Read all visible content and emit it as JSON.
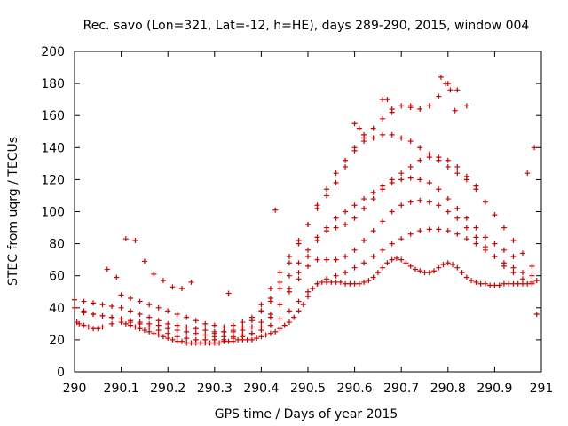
{
  "chart_data": {
    "type": "scatter",
    "title": "Rec. savo (Lon=321, Lat=-12, h=HE), days 289-290, 2015, window 004",
    "xlabel": "GPS time / Days of year 2015",
    "ylabel": "STEC from uqrg / TECUs",
    "xlim": [
      290,
      291
    ],
    "ylim": [
      0,
      200
    ],
    "x_ticks": [
      "290",
      "290.1",
      "290.2",
      "290.3",
      "290.4",
      "290.5",
      "290.6",
      "290.7",
      "290.8",
      "290.9",
      "291"
    ],
    "y_ticks": [
      "0",
      "20",
      "40",
      "60",
      "80",
      "100",
      "120",
      "140",
      "160",
      "180",
      "200"
    ],
    "grid": false,
    "legend": "none",
    "marker": "plus",
    "color": "#d40000",
    "series": [
      {
        "x": [
          290.005,
          290.01,
          290.02,
          290.03,
          290.04,
          290.05,
          290.06,
          290.08,
          290.1,
          290.11,
          290.12,
          290.13,
          290.14,
          290.15,
          290.16,
          290.17,
          290.18,
          290.19,
          290.2,
          290.21,
          290.22,
          290.23,
          290.24,
          290.25,
          290.26,
          290.27,
          290.28,
          290.29,
          290.3,
          290.31,
          290.32,
          290.33,
          290.34,
          290.35,
          290.36,
          290.37,
          290.38,
          290.39,
          290.4,
          290.41,
          290.42,
          290.43,
          290.44,
          290.45,
          290.46,
          290.47,
          290.48,
          290.49,
          290.5,
          290.51,
          290.52,
          290.53,
          290.54,
          290.55,
          290.56,
          290.57,
          290.58,
          290.59,
          290.6,
          290.61,
          290.62,
          290.63,
          290.64,
          290.65,
          290.66,
          290.67,
          290.68,
          290.69,
          290.7,
          290.71,
          290.72,
          290.73,
          290.74,
          290.75,
          290.76,
          290.77,
          290.78,
          290.79,
          290.8,
          290.81,
          290.82,
          290.83,
          290.84,
          290.85,
          290.86,
          290.87,
          290.88,
          290.89,
          290.9,
          290.91,
          290.92,
          290.93,
          290.94,
          290.95,
          290.96,
          290.97,
          290.98,
          290.99
        ],
        "y": [
          31,
          30,
          29,
          28,
          27,
          27,
          28,
          30,
          31,
          30,
          29,
          28,
          27,
          26,
          25,
          24,
          23,
          22,
          21,
          20,
          19,
          19,
          18,
          18,
          18,
          18,
          18,
          18,
          18,
          18,
          19,
          19,
          19,
          20,
          20,
          20,
          20,
          21,
          22,
          23,
          24,
          25,
          27,
          29,
          31,
          34,
          38,
          42,
          47,
          52,
          55,
          56,
          56,
          56,
          56,
          56,
          55,
          55,
          55,
          55,
          56,
          57,
          59,
          62,
          65,
          68,
          70,
          71,
          70,
          68,
          66,
          64,
          63,
          62,
          62,
          63,
          65,
          67,
          68,
          67,
          65,
          62,
          59,
          57,
          56,
          55,
          55,
          54,
          54,
          54,
          55,
          55,
          55,
          55,
          55,
          55,
          56,
          57
        ]
      },
      {
        "x": [
          290.0,
          290.02,
          290.04,
          290.06,
          290.08,
          290.1,
          290.12,
          290.14,
          290.16,
          290.18,
          290.2,
          290.22,
          290.24,
          290.26,
          290.28,
          290.3,
          290.32,
          290.34,
          290.36,
          290.38,
          290.4,
          290.42,
          290.44,
          290.46,
          290.48,
          290.5,
          290.52,
          290.54,
          290.56,
          290.58,
          290.6,
          290.62,
          290.64,
          290.66,
          290.68,
          290.7,
          290.72,
          290.74,
          290.76,
          290.78,
          290.8,
          290.82,
          290.84,
          290.86,
          290.88,
          290.9,
          290.92,
          290.94,
          290.96,
          290.98
        ],
        "y": [
          40,
          38,
          36,
          35,
          34,
          33,
          32,
          31,
          30,
          29,
          27,
          26,
          25,
          24,
          23,
          22,
          22,
          22,
          23,
          24,
          26,
          29,
          33,
          38,
          44,
          50,
          55,
          58,
          60,
          62,
          65,
          68,
          72,
          76,
          80,
          83,
          86,
          88,
          89,
          89,
          88,
          86,
          83,
          80,
          76,
          72,
          68,
          65,
          62,
          60
        ]
      },
      {
        "x": [
          290.0,
          290.02,
          290.04,
          290.06,
          290.08,
          290.1,
          290.12,
          290.14,
          290.16,
          290.18,
          290.2,
          290.22,
          290.24,
          290.26,
          290.28,
          290.3,
          290.32,
          290.34,
          290.36,
          290.38,
          290.4,
          290.42,
          290.44,
          290.46,
          290.48,
          290.5,
          290.52,
          290.54,
          290.56,
          290.58,
          290.6,
          290.62,
          290.64,
          290.66,
          290.68,
          290.7,
          290.72,
          290.74,
          290.76,
          290.78,
          290.8,
          290.82,
          290.84,
          290.86,
          290.88,
          290.9,
          290.92,
          290.94,
          290.96,
          290.98
        ],
        "y": [
          45,
          44,
          43,
          42,
          41,
          40,
          38,
          36,
          34,
          32,
          30,
          29,
          28,
          27,
          26,
          25,
          25,
          25,
          26,
          28,
          31,
          36,
          42,
          50,
          58,
          66,
          70,
          70,
          70,
          72,
          76,
          82,
          88,
          94,
          100,
          104,
          106,
          107,
          106,
          104,
          100,
          96,
          90,
          84,
          78,
          72,
          66,
          62,
          58,
          55
        ]
      },
      {
        "x": [
          290.1,
          290.12,
          290.14,
          290.16,
          290.18,
          290.2,
          290.22,
          290.24,
          290.26,
          290.28,
          290.3,
          290.32,
          290.34,
          290.36,
          290.38,
          290.4,
          290.42,
          290.44,
          290.46,
          290.48,
          290.5,
          290.52,
          290.54,
          290.56,
          290.58,
          290.6,
          290.62,
          290.64,
          290.66,
          290.68,
          290.7,
          290.72,
          290.74,
          290.76,
          290.78,
          290.8,
          290.82,
          290.84,
          290.86,
          290.88,
          290.9,
          290.92,
          290.94
        ],
        "y": [
          48,
          46,
          44,
          42,
          40,
          38,
          36,
          34,
          32,
          30,
          29,
          28,
          29,
          31,
          34,
          38,
          44,
          52,
          60,
          68,
          76,
          84,
          88,
          90,
          92,
          96,
          102,
          108,
          114,
          118,
          120,
          121,
          120,
          118,
          114,
          108,
          102,
          96,
          90,
          84,
          80,
          76,
          72
        ]
      },
      {
        "x": [
          290.02,
          290.04,
          290.06,
          290.08,
          290.1,
          290.12,
          290.14,
          290.16,
          290.18,
          290.2,
          290.22,
          290.24,
          290.26,
          290.28,
          290.3,
          290.32,
          290.34,
          290.36,
          290.38,
          290.4,
          290.42,
          290.44,
          290.46,
          290.48,
          290.5,
          290.52,
          290.54,
          290.56,
          290.58,
          290.6,
          290.62,
          290.64,
          290.66,
          290.68,
          290.7,
          290.72,
          290.74,
          290.76,
          290.78,
          290.8,
          290.82,
          290.84,
          290.86,
          290.88,
          290.9,
          290.92,
          290.94,
          290.96,
          290.98
        ],
        "y": [
          37,
          36,
          35,
          34,
          33,
          31,
          30,
          28,
          26,
          24,
          22,
          21,
          20,
          20,
          20,
          20,
          21,
          22,
          24,
          28,
          34,
          42,
          52,
          62,
          72,
          82,
          90,
          96,
          100,
          104,
          108,
          112,
          116,
          120,
          124,
          128,
          132,
          134,
          134,
          132,
          128,
          122,
          114,
          106,
          98,
          90,
          82,
          74,
          66
        ]
      },
      {
        "x": [
          290.3,
          290.32,
          290.34,
          290.36,
          290.38,
          290.4,
          290.42,
          290.44,
          290.46,
          290.48,
          290.5,
          290.52,
          290.54,
          290.56,
          290.58,
          290.6,
          290.62,
          290.64,
          290.66,
          290.68,
          290.7,
          290.72,
          290.74,
          290.76,
          290.78,
          290.8,
          290.82,
          290.84,
          290.86
        ],
        "y": [
          24,
          25,
          26,
          28,
          32,
          38,
          46,
          56,
          68,
          80,
          92,
          104,
          114,
          124,
          132,
          140,
          144,
          146,
          148,
          148,
          146,
          144,
          140,
          136,
          132,
          128,
          124,
          120,
          116
        ]
      },
      {
        "x": [
          290.4,
          290.42,
          290.44,
          290.46,
          290.48,
          290.5,
          290.52,
          290.54,
          290.56,
          290.58,
          290.6,
          290.62,
          290.64,
          290.66,
          290.68,
          290.7,
          290.72,
          290.74,
          290.76,
          290.78,
          290.8,
          290.82,
          290.84
        ],
        "y": [
          42,
          52,
          62,
          72,
          82,
          92,
          102,
          110,
          118,
          128,
          138,
          146,
          152,
          158,
          164,
          166,
          166,
          164,
          166,
          172,
          180,
          176,
          166
        ]
      },
      {
        "x": [
          290.07,
          290.09,
          290.11,
          290.13,
          290.15,
          290.17,
          290.19,
          290.21,
          290.23,
          290.25,
          290.33,
          290.43,
          290.6,
          290.61,
          290.62,
          290.66,
          290.67,
          290.68,
          290.72,
          290.785,
          290.795,
          290.805,
          290.815,
          290.97,
          290.985,
          290.99
        ],
        "y": [
          64,
          59,
          83,
          82,
          69,
          61,
          57,
          53,
          52,
          56,
          49,
          101,
          155,
          152,
          148,
          170,
          170,
          162,
          165,
          184,
          180,
          176,
          163,
          124,
          140,
          36
        ]
      }
    ]
  }
}
